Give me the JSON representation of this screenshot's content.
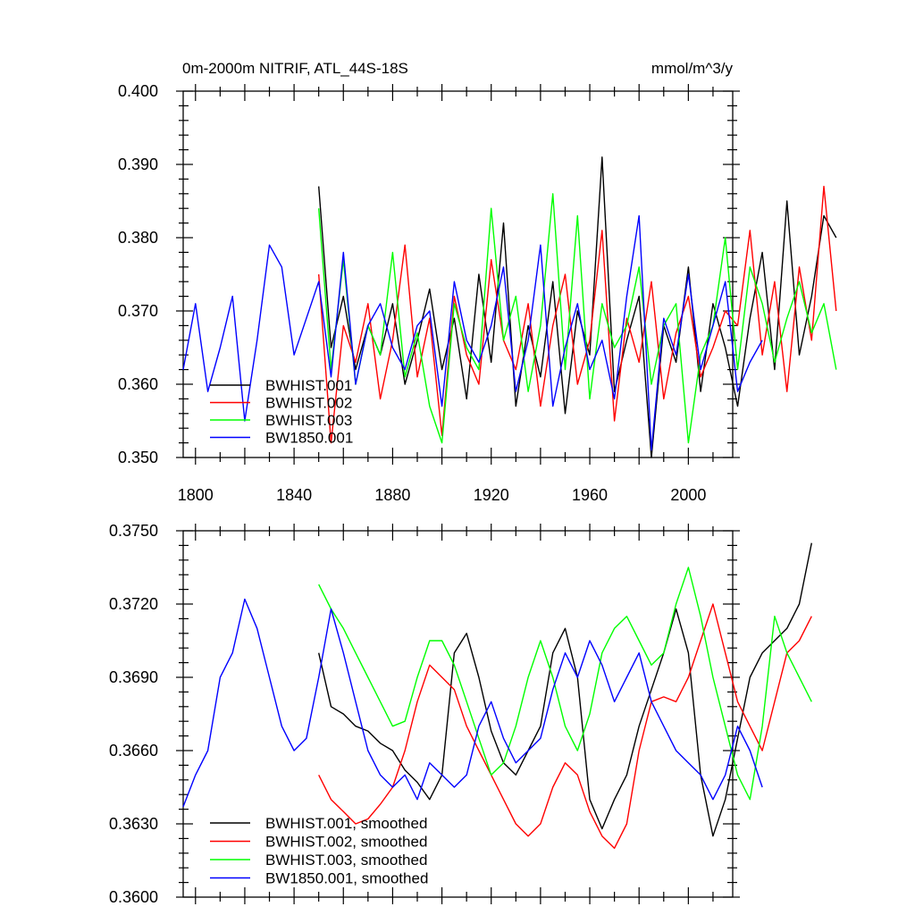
{
  "chart_data": [
    {
      "type": "line",
      "title": "0m-2000m NITRIF, ATL_44S-18S",
      "units": "mmol/m^3/y",
      "xlim": [
        1795,
        2018
      ],
      "ylim": [
        0.35,
        0.4
      ],
      "x_ticks": [
        {
          "value": 1800,
          "label": "1800"
        },
        {
          "value": 1840,
          "label": "1840"
        },
        {
          "value": 1880,
          "label": "1880"
        },
        {
          "value": 1920,
          "label": "1920"
        },
        {
          "value": 1960,
          "label": "1960"
        },
        {
          "value": 2000,
          "label": "2000"
        }
      ],
      "y_ticks": [
        {
          "value": 0.35,
          "label": "0.350"
        },
        {
          "value": 0.36,
          "label": "0.360"
        },
        {
          "value": 0.37,
          "label": "0.370"
        },
        {
          "value": 0.38,
          "label": "0.380"
        },
        {
          "value": 0.39,
          "label": "0.390"
        },
        {
          "value": 0.4,
          "label": "0.400"
        }
      ],
      "legend_position": "bottom-left",
      "series": [
        {
          "name": "BWHIST.001",
          "color": "#000000",
          "x_start": 1850,
          "x_step": 5,
          "values": [
            0.387,
            0.365,
            0.372,
            0.362,
            0.368,
            0.364,
            0.371,
            0.36,
            0.366,
            0.373,
            0.362,
            0.369,
            0.358,
            0.375,
            0.363,
            0.382,
            0.357,
            0.368,
            0.361,
            0.374,
            0.356,
            0.37,
            0.364,
            0.391,
            0.359,
            0.366,
            0.372,
            0.35,
            0.368,
            0.363,
            0.376,
            0.359,
            0.371,
            0.365,
            0.357,
            0.369,
            0.378,
            0.362,
            0.385,
            0.364,
            0.372,
            0.383,
            0.38
          ]
        },
        {
          "name": "BWHIST.002",
          "color": "#ff0000",
          "x_start": 1850,
          "x_step": 5,
          "values": [
            0.375,
            0.352,
            0.368,
            0.363,
            0.371,
            0.358,
            0.366,
            0.379,
            0.361,
            0.369,
            0.353,
            0.372,
            0.364,
            0.36,
            0.377,
            0.366,
            0.362,
            0.371,
            0.357,
            0.368,
            0.375,
            0.36,
            0.366,
            0.381,
            0.355,
            0.369,
            0.363,
            0.374,
            0.358,
            0.367,
            0.372,
            0.361,
            0.365,
            0.37,
            0.368,
            0.381,
            0.364,
            0.374,
            0.359,
            0.376,
            0.366,
            0.387,
            0.37
          ]
        },
        {
          "name": "BWHIST.003",
          "color": "#00ff00",
          "x_start": 1850,
          "x_step": 5,
          "values": [
            0.384,
            0.362,
            0.377,
            0.36,
            0.368,
            0.364,
            0.378,
            0.361,
            0.367,
            0.357,
            0.352,
            0.371,
            0.365,
            0.362,
            0.384,
            0.366,
            0.372,
            0.359,
            0.368,
            0.386,
            0.362,
            0.383,
            0.358,
            0.371,
            0.365,
            0.368,
            0.376,
            0.36,
            0.368,
            0.371,
            0.352,
            0.364,
            0.368,
            0.38,
            0.362,
            0.376,
            0.371,
            0.363,
            0.369,
            0.374,
            0.367,
            0.371,
            0.362
          ]
        },
        {
          "name": "BW1850.001",
          "color": "#0000ff",
          "x_start": 1795,
          "x_step": 5,
          "values": [
            0.362,
            0.371,
            0.359,
            0.365,
            0.372,
            0.355,
            0.366,
            0.379,
            0.376,
            0.364,
            0.369,
            0.374,
            0.361,
            0.378,
            0.36,
            0.368,
            0.371,
            0.365,
            0.362,
            0.368,
            0.37,
            0.357,
            0.374,
            0.366,
            0.363,
            0.368,
            0.376,
            0.359,
            0.366,
            0.379,
            0.357,
            0.365,
            0.371,
            0.362,
            0.366,
            0.358,
            0.372,
            0.383,
            0.351,
            0.369,
            0.364,
            0.375,
            0.362,
            0.368,
            0.374,
            0.359,
            0.363,
            0.366
          ]
        }
      ]
    },
    {
      "type": "line",
      "title": "",
      "xlim": [
        1795,
        2018
      ],
      "ylim": [
        0.36,
        0.375
      ],
      "y_ticks": [
        {
          "value": 0.36,
          "label": "0.3600"
        },
        {
          "value": 0.363,
          "label": "0.3630"
        },
        {
          "value": 0.366,
          "label": "0.3660"
        },
        {
          "value": 0.369,
          "label": "0.3690"
        },
        {
          "value": 0.372,
          "label": "0.3720"
        },
        {
          "value": 0.375,
          "label": "0.3750"
        }
      ],
      "legend_position": "bottom-left",
      "series": [
        {
          "name": "BWHIST.001, smoothed",
          "color": "#000000",
          "x_start": 1850,
          "x_step": 5,
          "values": [
            0.37,
            0.3678,
            0.3675,
            0.367,
            0.3668,
            0.3663,
            0.366,
            0.3652,
            0.3647,
            0.364,
            0.365,
            0.37,
            0.3708,
            0.369,
            0.3668,
            0.3655,
            0.365,
            0.366,
            0.367,
            0.37,
            0.371,
            0.369,
            0.364,
            0.3628,
            0.364,
            0.365,
            0.367,
            0.3685,
            0.37,
            0.3718,
            0.37,
            0.365,
            0.3625,
            0.364,
            0.3665,
            0.369,
            0.37,
            0.3705,
            0.371,
            0.372,
            0.3745
          ]
        },
        {
          "name": "BWHIST.002, smoothed",
          "color": "#ff0000",
          "x_start": 1850,
          "x_step": 5,
          "values": [
            0.365,
            0.364,
            0.3635,
            0.363,
            0.3632,
            0.3638,
            0.3645,
            0.366,
            0.368,
            0.3695,
            0.369,
            0.3685,
            0.367,
            0.366,
            0.365,
            0.364,
            0.363,
            0.3625,
            0.363,
            0.3645,
            0.3655,
            0.365,
            0.3635,
            0.3625,
            0.362,
            0.363,
            0.366,
            0.368,
            0.3682,
            0.368,
            0.369,
            0.3705,
            0.372,
            0.37,
            0.368,
            0.367,
            0.366,
            0.368,
            0.37,
            0.3705,
            0.3715
          ]
        },
        {
          "name": "BWHIST.003, smoothed",
          "color": "#00ff00",
          "x_start": 1850,
          "x_step": 5,
          "values": [
            0.3728,
            0.3718,
            0.371,
            0.37,
            0.369,
            0.368,
            0.367,
            0.3672,
            0.369,
            0.3705,
            0.3705,
            0.3695,
            0.368,
            0.3665,
            0.365,
            0.3655,
            0.367,
            0.369,
            0.3705,
            0.369,
            0.367,
            0.366,
            0.3675,
            0.37,
            0.371,
            0.3715,
            0.3705,
            0.3695,
            0.37,
            0.372,
            0.3735,
            0.3715,
            0.369,
            0.367,
            0.365,
            0.364,
            0.367,
            0.3715,
            0.37,
            0.369,
            0.368
          ]
        },
        {
          "name": "BW1850.001, smoothed",
          "color": "#0000ff",
          "x_start": 1795,
          "x_step": 5,
          "values": [
            0.3637,
            0.365,
            0.366,
            0.369,
            0.37,
            0.3722,
            0.371,
            0.369,
            0.367,
            0.366,
            0.3665,
            0.369,
            0.3718,
            0.37,
            0.368,
            0.366,
            0.365,
            0.3645,
            0.365,
            0.364,
            0.3655,
            0.365,
            0.3645,
            0.365,
            0.367,
            0.368,
            0.3665,
            0.3655,
            0.366,
            0.3665,
            0.3685,
            0.37,
            0.369,
            0.3705,
            0.3695,
            0.368,
            0.369,
            0.37,
            0.368,
            0.367,
            0.366,
            0.3655,
            0.365,
            0.364,
            0.365,
            0.367,
            0.366,
            0.3645
          ]
        }
      ]
    }
  ]
}
